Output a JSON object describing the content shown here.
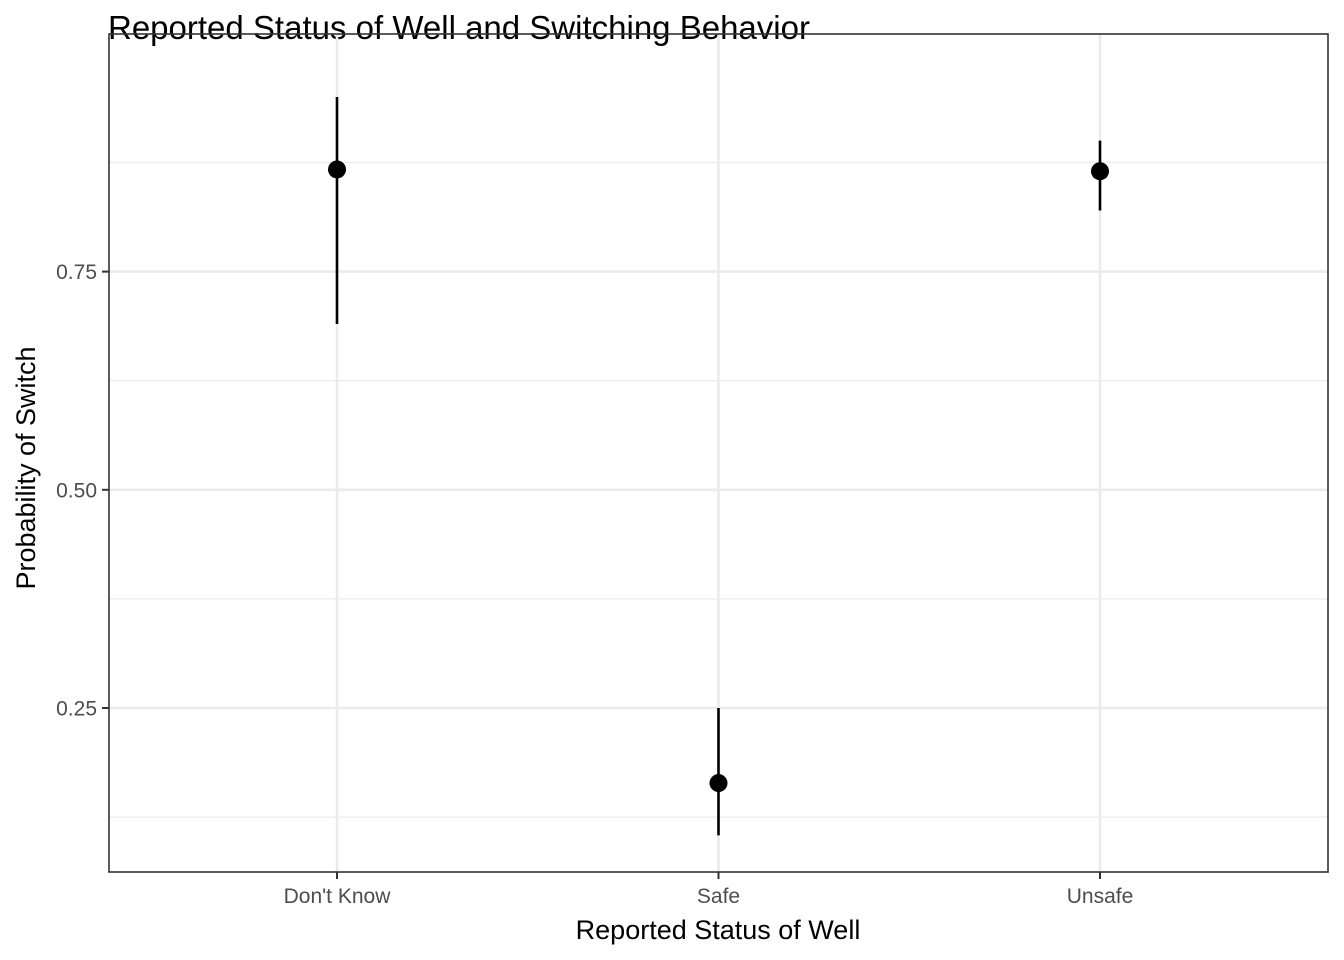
{
  "chart_data": {
    "type": "scatter",
    "title": "Reported Status of Well and Switching Behavior",
    "xlabel": "Reported Status of Well",
    "ylabel": "Probability of Switch",
    "categories": [
      "Don't Know",
      "Safe",
      "Unsafe"
    ],
    "series": [
      {
        "values": [
          0.867,
          0.164,
          0.865
        ],
        "lower": [
          0.69,
          0.104,
          0.82
        ],
        "upper": [
          0.95,
          0.25,
          0.9
        ]
      }
    ],
    "y_ticks": [
      0.25,
      0.5,
      0.75
    ],
    "y_tick_labels": [
      "0.25",
      "0.50",
      "0.75"
    ],
    "ylim": [
      0.0625,
      1.0
    ],
    "grid": true,
    "legend": "none",
    "colors": {
      "points": "#000000",
      "grid": "#ebebeb",
      "border": "#333333"
    }
  }
}
